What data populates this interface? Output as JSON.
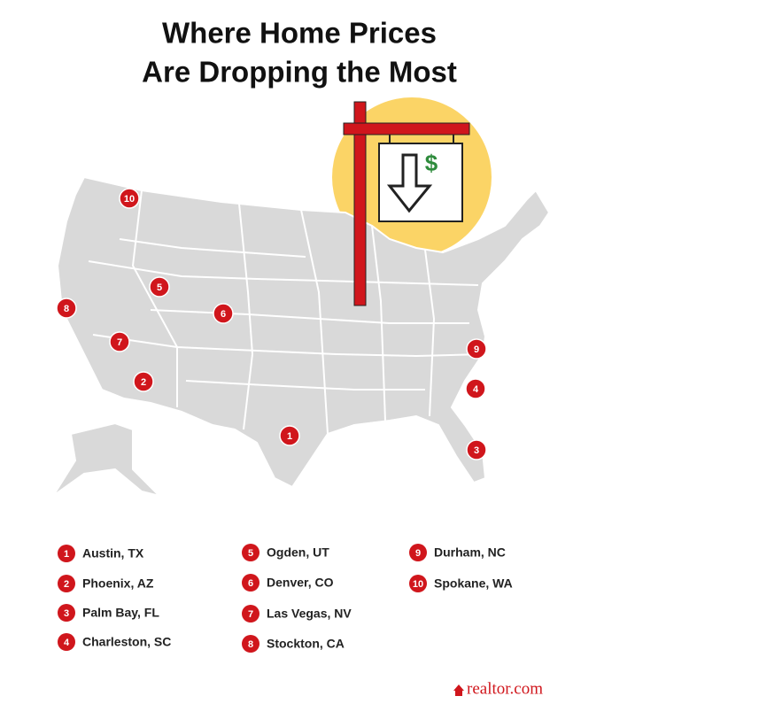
{
  "title": [
    "Where Home Prices",
    "Are Dropping the Most"
  ],
  "sign_symbol": "$",
  "legend": [
    {
      "rank": "1",
      "city": "Austin, TX"
    },
    {
      "rank": "2",
      "city": "Phoenix, AZ"
    },
    {
      "rank": "3",
      "city": "Palm Bay, FL"
    },
    {
      "rank": "4",
      "city": "Charleston, SC"
    },
    {
      "rank": "5",
      "city": "Ogden, UT"
    },
    {
      "rank": "6",
      "city": "Denver, CO"
    },
    {
      "rank": "7",
      "city": "Las Vegas, NV"
    },
    {
      "rank": "8",
      "city": "Stockton, CA"
    },
    {
      "rank": "9",
      "city": "Durham, NC"
    },
    {
      "rank": "10",
      "city": "Spokane, WA"
    }
  ],
  "logo": "realtor.com"
}
